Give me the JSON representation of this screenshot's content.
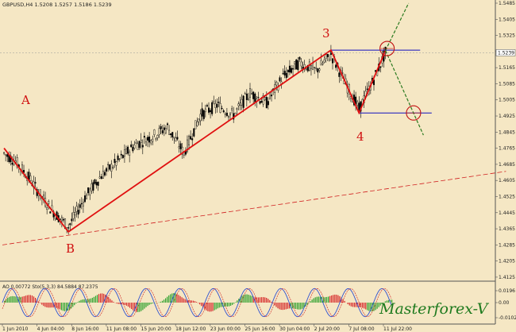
{
  "chart_data": {
    "type": "candlestick",
    "header": "GBPUSD,H4  1.5208 1.5257 1.5186 1.5239",
    "current_price_label": "1.5239",
    "y_tick_labels": [
      "1.5485",
      "1.5405",
      "1.5325",
      "1.5245",
      "1.5165",
      "1.5085",
      "1.5005",
      "1.4925",
      "1.4845",
      "1.4765",
      "1.4685",
      "1.4605",
      "1.4525",
      "1.4445",
      "1.4365",
      "1.4285",
      "1.4205",
      "1.4125"
    ],
    "x_tick_labels": [
      "1 Jun 2010",
      "4 Jun 04:00",
      "8 Jun 16:00",
      "11 Jun 08:00",
      "15 Jun 20:00",
      "18 Jun 12:00",
      "23 Jun 00:00",
      "25 Jun 16:00",
      "30 Jun 04:00",
      "2 Jul 20:00",
      "7 Jul 08:00",
      "11 Jul 22:00"
    ],
    "ylim": [
      1.4105,
      1.5485
    ],
    "candle_count": 210,
    "wave_labels": [
      "A",
      "B",
      "3",
      "4"
    ],
    "wave_points": [
      {
        "label": "",
        "bar": 1,
        "price": 1.4765
      },
      {
        "label": "B",
        "bar": 40,
        "price": 1.435
      },
      {
        "label": "3",
        "bar": 199,
        "price": 1.5252
      },
      {
        "label": "4",
        "bar": 216,
        "price": 1.494
      },
      {
        "label": "",
        "bar": 232,
        "price": 1.525
      }
    ],
    "series_points": [
      {
        "bar": 1,
        "price": 1.474
      },
      {
        "bar": 8,
        "price": 1.47
      },
      {
        "bar": 16,
        "price": 1.462
      },
      {
        "bar": 24,
        "price": 1.452
      },
      {
        "bar": 32,
        "price": 1.444
      },
      {
        "bar": 40,
        "price": 1.4375
      },
      {
        "bar": 50,
        "price": 1.452
      },
      {
        "bar": 60,
        "price": 1.463
      },
      {
        "bar": 70,
        "price": 1.47
      },
      {
        "bar": 80,
        "price": 1.478
      },
      {
        "bar": 90,
        "price": 1.482
      },
      {
        "bar": 100,
        "price": 1.487
      },
      {
        "bar": 110,
        "price": 1.474
      },
      {
        "bar": 120,
        "price": 1.493
      },
      {
        "bar": 130,
        "price": 1.498
      },
      {
        "bar": 140,
        "price": 1.493
      },
      {
        "bar": 150,
        "price": 1.504
      },
      {
        "bar": 160,
        "price": 1.499
      },
      {
        "bar": 170,
        "price": 1.512
      },
      {
        "bar": 180,
        "price": 1.519
      },
      {
        "bar": 190,
        "price": 1.515
      },
      {
        "bar": 199,
        "price": 1.523
      },
      {
        "bar": 207,
        "price": 1.51
      },
      {
        "bar": 216,
        "price": 1.496
      },
      {
        "bar": 224,
        "price": 1.509
      },
      {
        "bar": 232,
        "price": 1.5239
      }
    ],
    "horizontal_levels": [
      {
        "price": 1.5252,
        "from_bar": 199,
        "to_bar": 253
      },
      {
        "price": 1.494,
        "from_bar": 216,
        "to_bar": 260
      }
    ],
    "trendline": {
      "from": {
        "bar": 0,
        "price": 1.4285
      },
      "to": {
        "bar": 305,
        "price": 1.465
      }
    },
    "projections": [
      {
        "from": {
          "bar": 232,
          "price": 1.525
        },
        "to": {
          "bar": 246,
          "price": 1.5485
        }
      },
      {
        "from": {
          "bar": 232,
          "price": 1.525
        },
        "to": {
          "bar": 255,
          "price": 1.483
        }
      }
    ],
    "targets": [
      {
        "bar": 233,
        "price": 1.526
      },
      {
        "bar": 249,
        "price": 1.494
      }
    ],
    "indicator": {
      "header": "AO 0.00772  Sto(5,3,3) 84.5884 87.2375",
      "y_tick_labels": [
        "0.0196",
        "0.00",
        "-0.0102"
      ]
    },
    "watermark": "Masterforex-V"
  }
}
